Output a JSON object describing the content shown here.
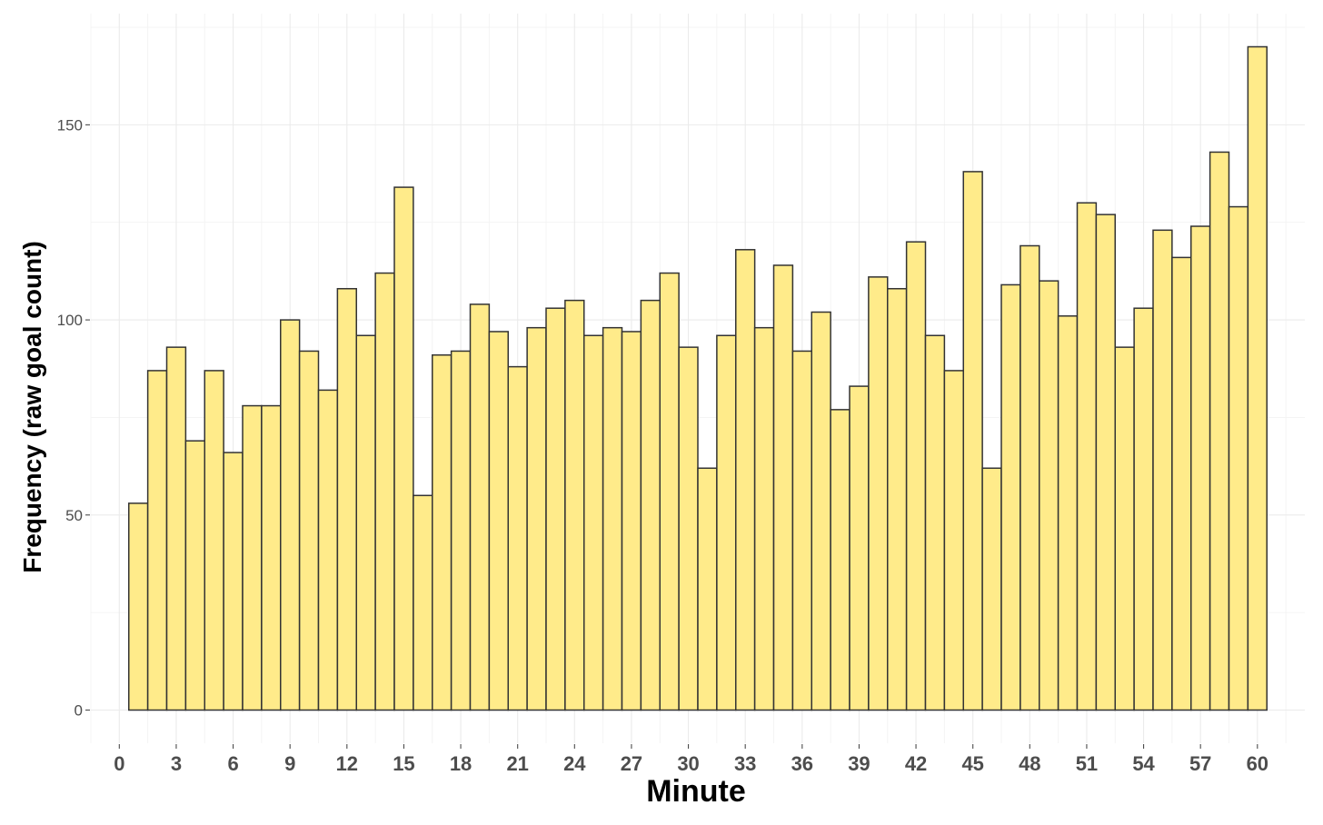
{
  "chart_data": {
    "type": "bar",
    "xlabel": "Minute",
    "ylabel": "Frequency (raw goal count)",
    "x": [
      1,
      2,
      3,
      4,
      5,
      6,
      7,
      8,
      9,
      10,
      11,
      12,
      13,
      14,
      15,
      16,
      17,
      18,
      19,
      20,
      21,
      22,
      23,
      24,
      25,
      26,
      27,
      28,
      29,
      30,
      31,
      32,
      33,
      34,
      35,
      36,
      37,
      38,
      39,
      40,
      41,
      42,
      43,
      44,
      45,
      46,
      47,
      48,
      49,
      50,
      51,
      52,
      53,
      54,
      55,
      56,
      57,
      58,
      59,
      60
    ],
    "values": [
      53,
      87,
      93,
      69,
      87,
      66,
      78,
      78,
      100,
      92,
      82,
      108,
      96,
      112,
      134,
      55,
      91,
      92,
      104,
      97,
      88,
      98,
      103,
      105,
      96,
      98,
      97,
      105,
      112,
      93,
      62,
      96,
      118,
      98,
      114,
      92,
      102,
      77,
      83,
      111,
      108,
      120,
      96,
      87,
      138,
      62,
      109,
      119,
      110,
      101,
      130,
      127,
      93,
      103,
      123,
      116,
      124,
      143,
      129,
      170
    ],
    "x_ticks": [
      "0",
      "3",
      "6",
      "9",
      "12",
      "15",
      "18",
      "21",
      "24",
      "27",
      "30",
      "33",
      "36",
      "39",
      "42",
      "45",
      "48",
      "51",
      "54",
      "57",
      "60"
    ],
    "x_tick_values": [
      0,
      3,
      6,
      9,
      12,
      15,
      18,
      21,
      24,
      27,
      30,
      33,
      36,
      39,
      42,
      45,
      48,
      51,
      54,
      57,
      60
    ],
    "y_ticks": [
      "0",
      "50",
      "100",
      "150"
    ],
    "y_tick_values": [
      0,
      50,
      100,
      150
    ],
    "xlim": [
      -1.5,
      62.5
    ],
    "ylim": [
      -8.5,
      178.5
    ],
    "grid": true,
    "colors": {
      "bar_fill": "#ffeb8a",
      "bar_stroke": "#333333"
    }
  }
}
